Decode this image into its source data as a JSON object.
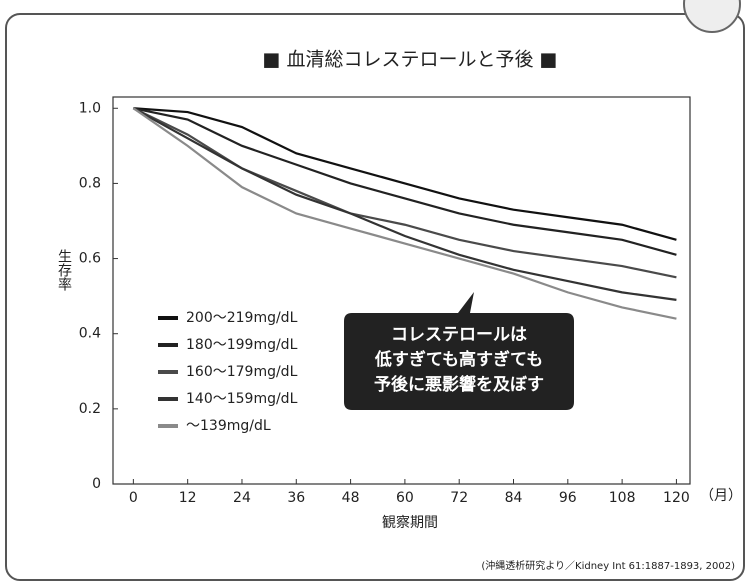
{
  "chart_data": {
    "type": "line",
    "title": "■ 血清総コレステロールと予後 ■",
    "y_label": "生存率",
    "x_label": "観察期間",
    "x_unit": "（月）",
    "annotation": [
      "コレステロールは",
      "低すぎても高すぎても",
      "予後に悪影響を及ぼす"
    ],
    "source": "(沖縄透析研究より／Kidney Int 61:1887-1893, 2002)",
    "x": [
      0,
      12,
      24,
      36,
      48,
      60,
      72,
      84,
      96,
      108,
      120
    ],
    "series": [
      {
        "name": "200～219mg/dL",
        "color": "#111111",
        "values": [
          1.0,
          0.99,
          0.95,
          0.88,
          0.84,
          0.8,
          0.76,
          0.73,
          0.71,
          0.69,
          0.65
        ]
      },
      {
        "name": "180～199mg/dL",
        "color": "#222222",
        "values": [
          1.0,
          0.97,
          0.9,
          0.85,
          0.8,
          0.76,
          0.72,
          0.69,
          0.67,
          0.65,
          0.61
        ]
      },
      {
        "name": "160～179mg/dL",
        "color": "#4a4a4a",
        "values": [
          1.0,
          0.93,
          0.84,
          0.78,
          0.72,
          0.69,
          0.65,
          0.62,
          0.6,
          0.58,
          0.55
        ]
      },
      {
        "name": "140～159mg/dL",
        "color": "#333333",
        "values": [
          1.0,
          0.92,
          0.84,
          0.77,
          0.72,
          0.66,
          0.61,
          0.57,
          0.54,
          0.51,
          0.49
        ]
      },
      {
        "name": "～139mg/dL",
        "color": "#8a8a8a",
        "values": [
          1.0,
          0.9,
          0.79,
          0.72,
          0.68,
          0.64,
          0.6,
          0.56,
          0.51,
          0.47,
          0.44
        ]
      }
    ],
    "xlim": [
      -4.5,
      123
    ],
    "ylim": [
      0,
      1.03
    ],
    "xticks": [
      0,
      12,
      24,
      36,
      48,
      60,
      72,
      84,
      96,
      108,
      120
    ],
    "yticks": [
      0,
      0.2,
      0.4,
      0.6,
      0.8,
      {
        "value": 1,
        "label": "1.0"
      }
    ],
    "legend": "lower-left"
  }
}
